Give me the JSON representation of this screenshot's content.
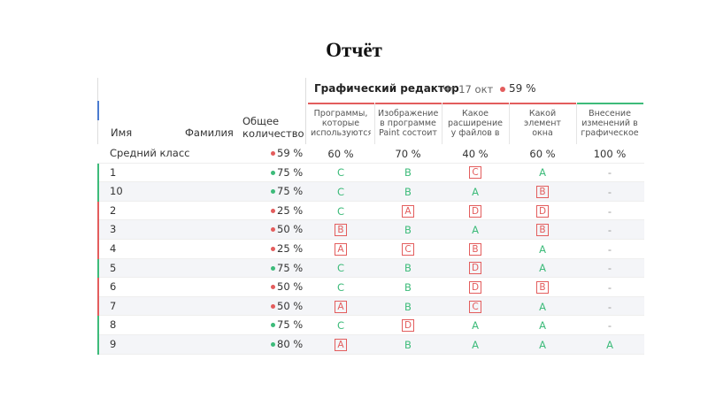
{
  "title": "Отчёт",
  "table": {
    "columns": {
      "name": "Имя",
      "surname": "Фамилия",
      "score": "Общее количество"
    },
    "group": {
      "title": "Графический редактор",
      "date": "Чт 17 окт",
      "score": "59 %",
      "status_color": "#e35d5d"
    },
    "questions": [
      {
        "text": "Программы, которые используются",
        "color": "#e35d5d"
      },
      {
        "text": "Изображение в программе Paint состоит",
        "color": "#e35d5d"
      },
      {
        "text": "Какое расширение у файлов в",
        "color": "#e35d5d"
      },
      {
        "text": "Какой элемент окна выделены на",
        "color": "#e35d5d"
      },
      {
        "text": "Внесение изменений в графическое",
        "color": "#3dbb7a"
      }
    ],
    "average": {
      "name": "Средний класс",
      "score": "59 %",
      "status_color": "#e35d5d",
      "answers": [
        "60 %",
        "70 %",
        "40 %",
        "60 %",
        "100 %"
      ]
    },
    "rows": [
      {
        "name": "1",
        "score": "75 %",
        "status_color": "#3dbb7a",
        "answers": [
          "C",
          "B",
          "C",
          "A",
          "-"
        ],
        "correct": [
          true,
          true,
          false,
          true,
          null
        ]
      },
      {
        "name": "10",
        "score": "75 %",
        "status_color": "#3dbb7a",
        "answers": [
          "C",
          "B",
          "A",
          "B",
          "-"
        ],
        "correct": [
          true,
          true,
          true,
          false,
          null
        ]
      },
      {
        "name": "2",
        "score": "25 %",
        "status_color": "#e35d5d",
        "answers": [
          "C",
          "A",
          "D",
          "D",
          "-"
        ],
        "correct": [
          true,
          false,
          false,
          false,
          null
        ]
      },
      {
        "name": "3",
        "score": "50 %",
        "status_color": "#e35d5d",
        "answers": [
          "B",
          "B",
          "A",
          "B",
          "-"
        ],
        "correct": [
          false,
          true,
          true,
          false,
          null
        ]
      },
      {
        "name": "4",
        "score": "25 %",
        "status_color": "#e35d5d",
        "answers": [
          "A",
          "C",
          "B",
          "A",
          "-"
        ],
        "correct": [
          false,
          false,
          false,
          true,
          null
        ]
      },
      {
        "name": "5",
        "score": "75 %",
        "status_color": "#3dbb7a",
        "answers": [
          "C",
          "B",
          "D",
          "A",
          "-"
        ],
        "correct": [
          true,
          true,
          false,
          true,
          null
        ]
      },
      {
        "name": "6",
        "score": "50 %",
        "status_color": "#e35d5d",
        "answers": [
          "C",
          "B",
          "D",
          "B",
          "-"
        ],
        "correct": [
          true,
          true,
          false,
          false,
          null
        ]
      },
      {
        "name": "7",
        "score": "50 %",
        "status_color": "#e35d5d",
        "answers": [
          "A",
          "B",
          "C",
          "A",
          "-"
        ],
        "correct": [
          false,
          true,
          false,
          true,
          null
        ]
      },
      {
        "name": "8",
        "score": "75 %",
        "status_color": "#3dbb7a",
        "answers": [
          "C",
          "D",
          "A",
          "A",
          "-"
        ],
        "correct": [
          true,
          false,
          true,
          true,
          null
        ]
      },
      {
        "name": "9",
        "score": "80 %",
        "status_color": "#3dbb7a",
        "answers": [
          "A",
          "B",
          "A",
          "A",
          "A"
        ],
        "correct": [
          false,
          true,
          true,
          true,
          true
        ]
      }
    ]
  }
}
